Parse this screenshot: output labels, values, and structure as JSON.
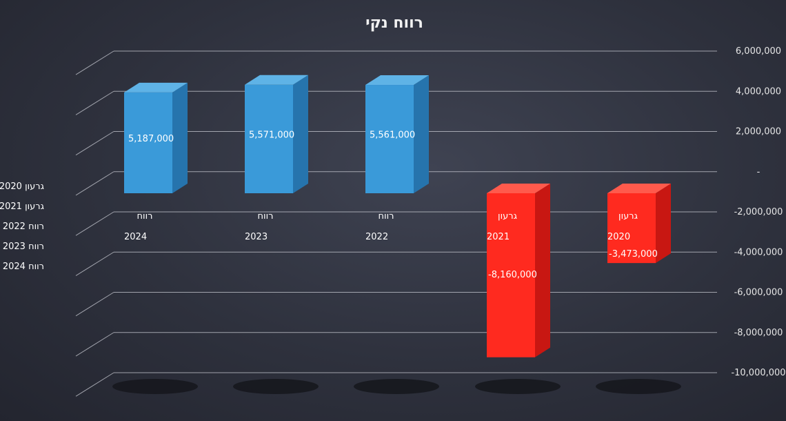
{
  "chart_data": {
    "type": "bar",
    "title": "רווח נקי",
    "categories": [
      "2024",
      "2023",
      "2022",
      "2021",
      "2020"
    ],
    "category_labels": [
      "רווח",
      "רווח",
      "רווח",
      "גרעון",
      "גרעון"
    ],
    "values": [
      5187000,
      5571000,
      5561000,
      -8160000,
      -3473000
    ],
    "data_labels": [
      "5,187,000",
      "5,571,000",
      "5,561,000",
      "-8,160,000",
      "-3,473,000"
    ],
    "bar_colors": [
      "#3a9ad9",
      "#3a9ad9",
      "#3a9ad9",
      "#ff2a1f",
      "#ff2a1f"
    ],
    "ylim": [
      -10000000,
      6000000
    ],
    "y_ticks": [
      "6,000,000",
      "4,000,000",
      "2,000,000",
      "-",
      "-2,000,000",
      "-4,000,000",
      "-6,000,000",
      "-8,000,000",
      "-10,000,000"
    ],
    "y_axis_side": "right",
    "grid": true,
    "legend_position": "left",
    "legend": [
      "2020 גרעון",
      "2021 גרעון",
      "2022 רווח",
      "2023 רווח",
      "2024 רווח"
    ]
  }
}
